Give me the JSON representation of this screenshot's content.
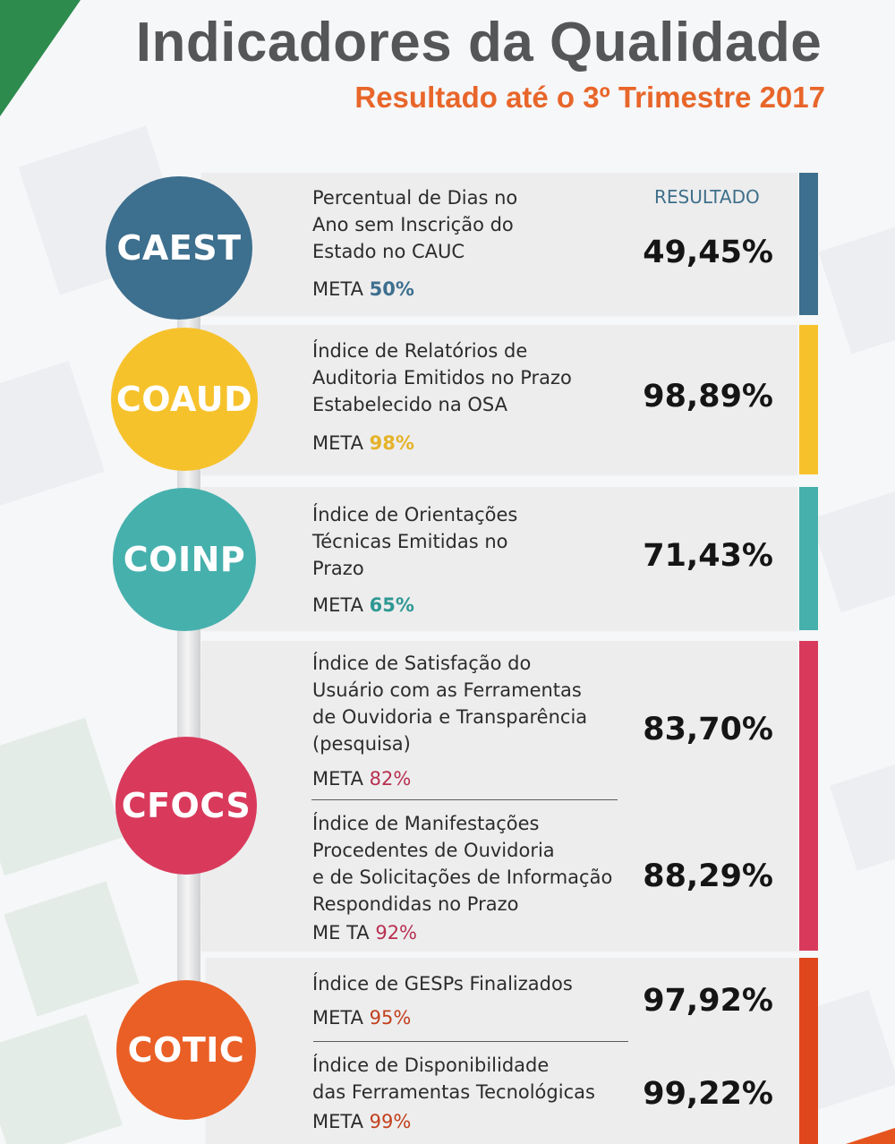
{
  "header": {
    "title": "Indicadores da Qualidade",
    "subtitle": "Resultado até o 3º Trimestre 2017"
  },
  "result_header": "RESULTADO",
  "colors": {
    "caest": "#3d6f8e",
    "coaud": "#f6c22c",
    "coinp": "#46b0ad",
    "cfocs": "#d93a5c",
    "cotic": "#ea5f25",
    "title": "#555658",
    "subtitle": "#e8662a"
  },
  "units": [
    {
      "code": "CAEST",
      "indicators": [
        {
          "name": "Percentual de Dias no\nAno sem Inscrição do\nEstado no CAUC",
          "meta_label": "META",
          "meta_value": "50%",
          "result": "49,45%"
        }
      ]
    },
    {
      "code": "COAUD",
      "indicators": [
        {
          "name": "Índice de Relatórios de\nAuditoria Emitidos no Prazo\nEstabelecido na OSA",
          "meta_label": "META",
          "meta_value": "98%",
          "result": "98,89%"
        }
      ]
    },
    {
      "code": "COINP",
      "indicators": [
        {
          "name": "Índice de Orientações\nTécnicas Emitidas no\nPrazo",
          "meta_label": "META",
          "meta_value": "65%",
          "result": "71,43%"
        }
      ]
    },
    {
      "code": "CFOCS",
      "indicators": [
        {
          "name": "Índice de Satisfação do\nUsuário com as Ferramentas\nde Ouvidoria e Transparência\n(pesquisa)",
          "meta_label": "META",
          "meta_value": "82%",
          "result": "83,70%"
        },
        {
          "name": "Índice de Manifestações\nProcedentes de Ouvidoria\ne de Solicitações de Informação\nRespondidas no Prazo",
          "meta_label": "ME TA",
          "meta_value": "92%",
          "result": "88,29%"
        }
      ]
    },
    {
      "code": "COTIC",
      "indicators": [
        {
          "name": "Índice de GESPs Finalizados",
          "meta_label": "META",
          "meta_value": "95%",
          "result": "97,92%"
        },
        {
          "name": "Índice de Disponibilidade\ndas Ferramentas Tecnológicas",
          "meta_label": "META",
          "meta_value": "99%",
          "result": "99,22%"
        }
      ]
    }
  ]
}
